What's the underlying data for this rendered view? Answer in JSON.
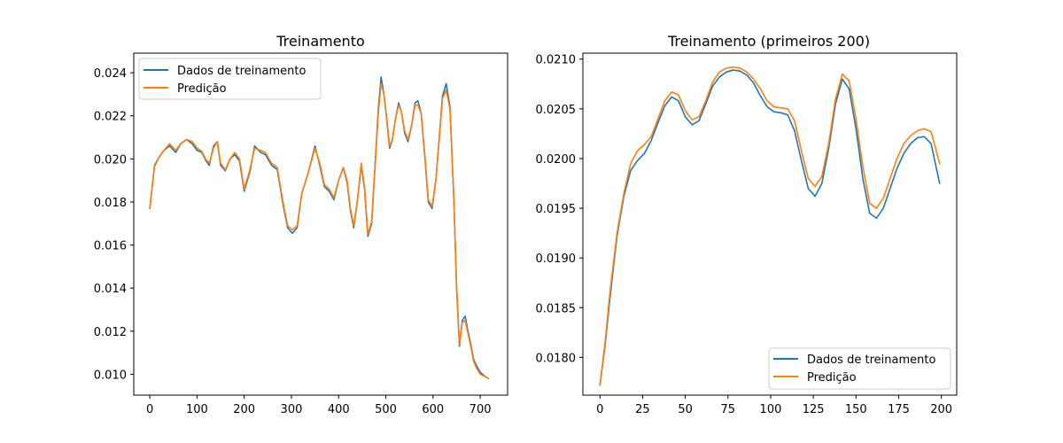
{
  "figure": {
    "background": "#ffffff",
    "axes_color": "#000000"
  },
  "series_colors": [
    "#1f77b4",
    "#ff7f0e"
  ],
  "legend_labels": [
    "Dados de treinamento",
    "Predição"
  ],
  "chart_data": [
    {
      "type": "line",
      "title": "Treinamento",
      "xlabel": "",
      "ylabel": "",
      "xlim": [
        -34,
        758
      ],
      "ylim": [
        0.00903,
        0.02491
      ],
      "xticks": [
        0,
        100,
        200,
        300,
        400,
        500,
        600,
        700
      ],
      "xtick_labels": [
        "0",
        "100",
        "200",
        "300",
        "400",
        "500",
        "600",
        "700"
      ],
      "yticks": [
        0.01,
        0.012,
        0.014,
        0.016,
        0.018,
        0.02,
        0.022,
        0.024
      ],
      "ytick_labels": [
        "0.010",
        "0.012",
        "0.014",
        "0.016",
        "0.018",
        "0.020",
        "0.022",
        "0.024"
      ],
      "grid": false,
      "legend": "upper left",
      "series": [
        {
          "name": "Dados de treinamento",
          "x": [
            0,
            10,
            20,
            30,
            42,
            55,
            65,
            78,
            90,
            100,
            110,
            118,
            126,
            135,
            143,
            150,
            160,
            170,
            180,
            190,
            200,
            212,
            222,
            235,
            245,
            258,
            270,
            283,
            292,
            302,
            312,
            322,
            335,
            350,
            360,
            370,
            380,
            390,
            400,
            410,
            418,
            425,
            432,
            440,
            448,
            455,
            462,
            470,
            478,
            484,
            490,
            496,
            502,
            508,
            514,
            520,
            527,
            533,
            540,
            547,
            555,
            562,
            568,
            575,
            583,
            590,
            598,
            606,
            614,
            620,
            628,
            636,
            644,
            650,
            656,
            662,
            668,
            674,
            680,
            686,
            692,
            700,
            710,
            718
          ],
          "y": [
            0.0177,
            0.0197,
            0.0201,
            0.0204,
            0.0206,
            0.0203,
            0.0207,
            0.0209,
            0.0207,
            0.0204,
            0.0203,
            0.01995,
            0.0197,
            0.0206,
            0.0208,
            0.0197,
            0.01945,
            0.02,
            0.0202,
            0.0199,
            0.0185,
            0.0194,
            0.0206,
            0.0203,
            0.0202,
            0.0197,
            0.0195,
            0.0178,
            0.0168,
            0.01655,
            0.0168,
            0.0184,
            0.0193,
            0.0206,
            0.0197,
            0.0187,
            0.0185,
            0.0181,
            0.019,
            0.0196,
            0.0189,
            0.0176,
            0.0168,
            0.0181,
            0.0197,
            0.0186,
            0.0164,
            0.017,
            0.02,
            0.0223,
            0.0238,
            0.023,
            0.0218,
            0.0205,
            0.0209,
            0.0218,
            0.0226,
            0.0222,
            0.0212,
            0.0208,
            0.0216,
            0.0226,
            0.0227,
            0.0221,
            0.02,
            0.018,
            0.0177,
            0.019,
            0.0212,
            0.0229,
            0.0235,
            0.0224,
            0.0182,
            0.014,
            0.0113,
            0.0125,
            0.0127,
            0.012,
            0.0114,
            0.0107,
            0.0104,
            0.0101,
            0.0099,
            0.0098
          ]
        },
        {
          "name": "Predição",
          "x": [
            0,
            10,
            20,
            30,
            42,
            55,
            65,
            78,
            90,
            100,
            110,
            118,
            126,
            135,
            143,
            150,
            160,
            170,
            180,
            190,
            200,
            212,
            222,
            235,
            245,
            258,
            270,
            283,
            292,
            302,
            312,
            322,
            335,
            350,
            360,
            370,
            380,
            390,
            400,
            410,
            418,
            425,
            432,
            440,
            448,
            455,
            462,
            470,
            478,
            484,
            490,
            496,
            502,
            508,
            514,
            520,
            527,
            533,
            540,
            547,
            555,
            562,
            568,
            575,
            583,
            590,
            598,
            606,
            614,
            620,
            628,
            636,
            644,
            650,
            656,
            662,
            668,
            674,
            680,
            686,
            692,
            700,
            710,
            718
          ],
          "y": [
            0.0177,
            0.01965,
            0.0201,
            0.0204,
            0.0207,
            0.0204,
            0.0207,
            0.0209,
            0.0208,
            0.0205,
            0.02035,
            0.02,
            0.0198,
            0.0205,
            0.0208,
            0.0198,
            0.0195,
            0.02,
            0.0203,
            0.02,
            0.0186,
            0.0195,
            0.0205,
            0.0204,
            0.0203,
            0.0198,
            0.0196,
            0.0179,
            0.0169,
            0.0167,
            0.0169,
            0.0184,
            0.0193,
            0.0205,
            0.0198,
            0.0188,
            0.0186,
            0.0182,
            0.019,
            0.0196,
            0.019,
            0.0177,
            0.0169,
            0.0181,
            0.0198,
            0.0187,
            0.0165,
            0.0171,
            0.0199,
            0.0221,
            0.0235,
            0.023,
            0.0219,
            0.0206,
            0.0209,
            0.0218,
            0.0225,
            0.0222,
            0.0213,
            0.0209,
            0.0216,
            0.0225,
            0.0225,
            0.0221,
            0.0201,
            0.0181,
            0.0178,
            0.019,
            0.0211,
            0.0228,
            0.0232,
            0.0223,
            0.0182,
            0.0141,
            0.0114,
            0.0124,
            0.0125,
            0.0119,
            0.0113,
            0.0106,
            0.0103,
            0.01,
            0.0099,
            0.0098
          ]
        }
      ]
    },
    {
      "type": "line",
      "title": "Treinamento (primeiros 200)",
      "xlabel": "",
      "ylabel": "",
      "xlim": [
        -10,
        209
      ],
      "ylim": [
        0.01762,
        0.02106
      ],
      "xticks": [
        0,
        25,
        50,
        75,
        100,
        125,
        150,
        175,
        200
      ],
      "xtick_labels": [
        "0",
        "25",
        "50",
        "75",
        "100",
        "125",
        "150",
        "175",
        "200"
      ],
      "yticks": [
        0.018,
        0.0185,
        0.019,
        0.0195,
        0.02,
        0.0205,
        0.021
      ],
      "ytick_labels": [
        "0.0180",
        "0.0185",
        "0.0190",
        "0.0195",
        "0.0200",
        "0.0205",
        "0.0210"
      ],
      "grid": false,
      "legend": "lower right",
      "series": [
        {
          "name": "Dados de treinamento",
          "x": [
            0,
            3,
            6,
            10,
            14,
            18,
            22,
            26,
            30,
            34,
            38,
            42,
            46,
            50,
            54,
            58,
            62,
            66,
            70,
            74,
            78,
            82,
            86,
            90,
            94,
            98,
            102,
            106,
            110,
            114,
            118,
            122,
            126,
            130,
            134,
            138,
            142,
            146,
            150,
            154,
            158,
            162,
            166,
            170,
            174,
            178,
            182,
            186,
            190,
            194,
            199
          ],
          "y": [
            0.01772,
            0.01812,
            0.01862,
            0.01922,
            0.01962,
            0.01988,
            0.01998,
            0.02005,
            0.02018,
            0.02036,
            0.02053,
            0.02062,
            0.02058,
            0.02042,
            0.02034,
            0.02038,
            0.02055,
            0.02073,
            0.02082,
            0.02087,
            0.02089,
            0.02088,
            0.02084,
            0.02076,
            0.02063,
            0.02052,
            0.02047,
            0.02046,
            0.02044,
            0.02028,
            0.01998,
            0.0197,
            0.01962,
            0.01975,
            0.0201,
            0.02055,
            0.0208,
            0.0207,
            0.0203,
            0.0198,
            0.01945,
            0.0194,
            0.0195,
            0.0197,
            0.0199,
            0.02005,
            0.02015,
            0.02021,
            0.02022,
            0.02015,
            0.01975
          ]
        },
        {
          "name": "Predição",
          "x": [
            0,
            3,
            6,
            10,
            14,
            18,
            22,
            26,
            30,
            34,
            38,
            42,
            46,
            50,
            54,
            58,
            62,
            66,
            70,
            74,
            78,
            82,
            86,
            90,
            94,
            98,
            102,
            106,
            110,
            114,
            118,
            122,
            126,
            130,
            134,
            138,
            142,
            146,
            150,
            154,
            158,
            162,
            166,
            170,
            174,
            178,
            182,
            186,
            190,
            194,
            199
          ],
          "y": [
            0.01772,
            0.01815,
            0.01868,
            0.01925,
            0.01965,
            0.01995,
            0.02008,
            0.02014,
            0.02022,
            0.0204,
            0.02058,
            0.02067,
            0.02064,
            0.02048,
            0.02039,
            0.02042,
            0.02058,
            0.02077,
            0.02087,
            0.02091,
            0.02092,
            0.02091,
            0.02087,
            0.0208,
            0.0207,
            0.02058,
            0.02052,
            0.02051,
            0.0205,
            0.02038,
            0.02008,
            0.0198,
            0.01972,
            0.01982,
            0.02015,
            0.0206,
            0.02085,
            0.02078,
            0.0204,
            0.01992,
            0.01955,
            0.0195,
            0.0196,
            0.0198,
            0.02,
            0.02015,
            0.02023,
            0.02028,
            0.0203,
            0.02027,
            0.01995
          ]
        }
      ]
    }
  ]
}
